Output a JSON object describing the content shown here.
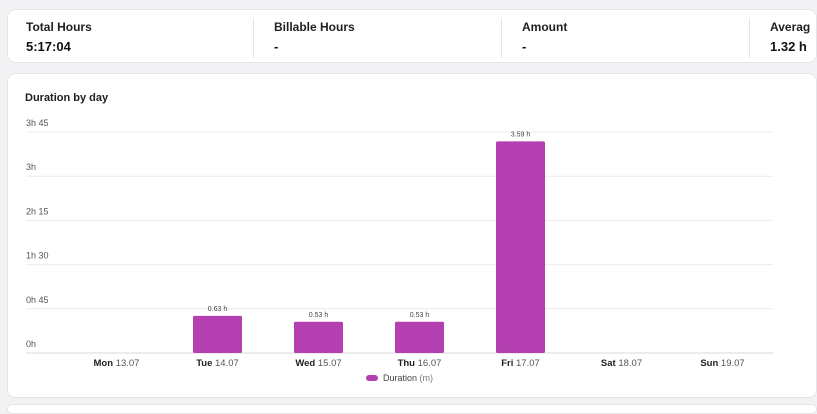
{
  "summary": {
    "total_hours": {
      "label": "Total Hours",
      "value": "5:17:04"
    },
    "billable_hours": {
      "label": "Billable Hours",
      "value": "-"
    },
    "amount": {
      "label": "Amount",
      "value": "-"
    },
    "average": {
      "label": "Averag",
      "value": "1.32 h"
    }
  },
  "chart": {
    "title": "Duration by day",
    "legend_label": "Duration",
    "legend_unit": " (m)"
  },
  "colors": {
    "bar": "#b43fb0",
    "grid": "#ececef"
  },
  "chart_data": {
    "type": "bar",
    "title": "Duration by day",
    "categories": [
      {
        "day": "Mon",
        "date": "13.07"
      },
      {
        "day": "Tue",
        "date": "14.07"
      },
      {
        "day": "Wed",
        "date": "15.07"
      },
      {
        "day": "Thu",
        "date": "16.07"
      },
      {
        "day": "Fri",
        "date": "17.07"
      },
      {
        "day": "Sat",
        "date": "18.07"
      },
      {
        "day": "Sun",
        "date": "19.07"
      }
    ],
    "series": [
      {
        "name": "Duration (m)",
        "values": [
          0,
          0.63,
          0.53,
          0.53,
          3.59,
          0,
          0
        ]
      }
    ],
    "data_labels": [
      "",
      "0.63 h",
      "0.53 h",
      "0.53 h",
      "3.59 h",
      "",
      ""
    ],
    "y_ticks": [
      {
        "value": 0,
        "label": "0h"
      },
      {
        "value": 0.75,
        "label": "0h 45"
      },
      {
        "value": 1.5,
        "label": "1h 30"
      },
      {
        "value": 2.25,
        "label": "2h 15"
      },
      {
        "value": 3,
        "label": "3h"
      },
      {
        "value": 3.75,
        "label": "3h 45"
      }
    ],
    "ylim": [
      0,
      3.75
    ],
    "grid": true,
    "legend_position": "bottom"
  }
}
